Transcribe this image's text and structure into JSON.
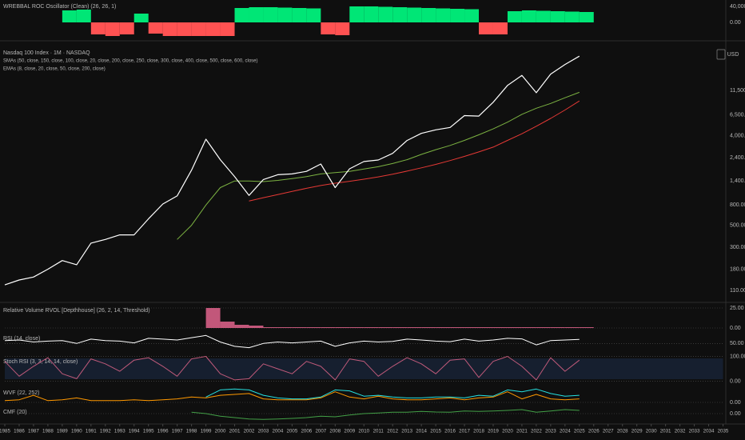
{
  "currency": "USD",
  "chart_data": [
    {
      "type": "bar",
      "title": "WREBBAL ROC Oscillator (Clean) (26, 26, 1)",
      "x": [
        1985,
        1986,
        1987,
        1988,
        1989,
        1990,
        1991,
        1992,
        1993,
        1994,
        1995,
        1996,
        1997,
        1998,
        1999,
        2000,
        2001,
        2002,
        2003,
        2004,
        2005,
        2006,
        2007,
        2008,
        2009,
        2010,
        2011,
        2012,
        2013,
        2014,
        2015,
        2016,
        2017,
        2018,
        2019,
        2020,
        2021,
        2022,
        2023,
        2024,
        2025
      ],
      "series": [
        {
          "color": "#00e676",
          "values": [
            null,
            null,
            null,
            null,
            30000,
            32000,
            -30000,
            -34000,
            -30000,
            22000,
            -28000,
            -34000,
            -34000,
            -34000,
            -34000,
            -34000,
            36000,
            38000,
            38000,
            37000,
            36000,
            35000,
            -30000,
            -32000,
            40000,
            40000,
            39000,
            38000,
            37000,
            36000,
            35000,
            34000,
            33000,
            -30000,
            -30000,
            28000,
            30000,
            29000,
            28000,
            27000,
            26000
          ]
        }
      ],
      "negative_color": "#ff5252",
      "xlim": [
        1985,
        2035
      ],
      "ylim": [
        -40000,
        52000
      ],
      "yticks": [
        {
          "value": 40000,
          "label": "40,000.00"
        },
        {
          "value": 0,
          "label": "0.00"
        }
      ],
      "grid": false
    },
    {
      "type": "line",
      "title": "Nasdaq 100 Index · 1M · NASDAQ",
      "subtitles": [
        "SMAs (50, close, 150, close, 100, close, 20, close, 200, close, 250, close, 300, close, 400, close, 500, close, 600, close)",
        "EMAs (8, close, 20, close, 50, close, 200, close)"
      ],
      "x": [
        1985,
        1986,
        1987,
        1988,
        1989,
        1990,
        1991,
        1992,
        1993,
        1994,
        1995,
        1996,
        1997,
        1998,
        1999,
        2000,
        2001,
        2002,
        2003,
        2004,
        2005,
        2006,
        2007,
        2008,
        2009,
        2010,
        2011,
        2012,
        2013,
        2014,
        2015,
        2016,
        2017,
        2018,
        2019,
        2020,
        2021,
        2022,
        2023,
        2024,
        2025
      ],
      "series": [
        {
          "color": "#7cb342",
          "values": [
            null,
            null,
            null,
            null,
            null,
            null,
            null,
            null,
            null,
            null,
            null,
            null,
            360,
            500,
            800,
            1200,
            1400,
            1400,
            1380,
            1420,
            1480,
            1550,
            1650,
            1700,
            1750,
            1850,
            1950,
            2100,
            2300,
            2600,
            2900,
            3200,
            3600,
            4100,
            4700,
            5500,
            6600,
            7600,
            8500,
            9700,
            11000
          ]
        },
        {
          "color": "#e53935",
          "values": [
            null,
            null,
            null,
            null,
            null,
            null,
            null,
            null,
            null,
            null,
            null,
            null,
            null,
            null,
            null,
            null,
            null,
            880,
            950,
            1020,
            1100,
            1180,
            1260,
            1330,
            1390,
            1460,
            1540,
            1640,
            1760,
            1900,
            2060,
            2250,
            2480,
            2750,
            3080,
            3600,
            4200,
            5000,
            6000,
            7300,
            9000
          ]
        },
        {
          "color": "#ffffff",
          "values": [
            125,
            140,
            150,
            180,
            220,
            200,
            330,
            360,
            400,
            400,
            580,
            820,
            990,
            1800,
            3700,
            2300,
            1550,
            1000,
            1450,
            1620,
            1650,
            1750,
            2080,
            1200,
            1860,
            2200,
            2280,
            2660,
            3590,
            4240,
            4600,
            4860,
            6400,
            6330,
            8730,
            12900,
            16300,
            10900,
            16800,
            21000,
            25500
          ]
        }
      ],
      "log_scale": true,
      "xlim": [
        1985,
        2035
      ],
      "ylim": [
        88,
        32000
      ],
      "yticks": [
        {
          "value": 110,
          "label": "110.00"
        },
        {
          "value": 180,
          "label": "180.00"
        },
        {
          "value": 300,
          "label": "300.00"
        },
        {
          "value": 500,
          "label": "500.00"
        },
        {
          "value": 800,
          "label": "800.00"
        },
        {
          "value": 1400,
          "label": "1,400.00"
        },
        {
          "value": 2400,
          "label": "2,400.00"
        },
        {
          "value": 4000,
          "label": "4,000.00"
        },
        {
          "value": 6500,
          "label": "6,500.00"
        },
        {
          "value": 11500,
          "label": "11,500.00"
        }
      ],
      "grid": false
    },
    {
      "type": "bar",
      "title": "Relative Volume RVOL [Depthhouse] (26, 2, 14, Threshold)",
      "x": [
        1985,
        1986,
        1987,
        1988,
        1989,
        1990,
        1991,
        1992,
        1993,
        1994,
        1995,
        1996,
        1997,
        1998,
        1999,
        2000,
        2001,
        2002,
        2003,
        2004,
        2005,
        2006,
        2007,
        2008,
        2009,
        2010,
        2011,
        2012,
        2013,
        2014,
        2015,
        2016,
        2017,
        2018,
        2019,
        2020,
        2021,
        2022,
        2023,
        2024,
        2025
      ],
      "series": [
        {
          "color": "#c2577a",
          "values": [
            null,
            null,
            null,
            null,
            null,
            null,
            null,
            null,
            null,
            null,
            null,
            null,
            null,
            null,
            25,
            8,
            4,
            3,
            1,
            1,
            1,
            1,
            1,
            1,
            1,
            1,
            1,
            1,
            1,
            1,
            1,
            1,
            1,
            1,
            1,
            1,
            1,
            1,
            1,
            1,
            1
          ]
        }
      ],
      "xlim": [
        1985,
        2035
      ],
      "ylim": [
        0,
        30
      ],
      "yticks": [
        {
          "value": 25,
          "label": "25.00"
        },
        {
          "value": 0,
          "label": "0.00"
        }
      ],
      "grid": true
    },
    {
      "type": "line",
      "title": "RSI (14, close)",
      "x": [
        1985,
        1986,
        1987,
        1988,
        1989,
        1990,
        1991,
        1992,
        1993,
        1994,
        1995,
        1996,
        1997,
        1998,
        1999,
        2000,
        2001,
        2002,
        2003,
        2004,
        2005,
        2006,
        2007,
        2008,
        2009,
        2010,
        2011,
        2012,
        2013,
        2014,
        2015,
        2016,
        2017,
        2018,
        2019,
        2020,
        2021,
        2022,
        2023,
        2024,
        2025
      ],
      "series": [
        {
          "color": "#ffffff",
          "values": [
            60,
            62,
            55,
            58,
            60,
            50,
            65,
            60,
            58,
            52,
            68,
            65,
            62,
            70,
            78,
            55,
            40,
            35,
            50,
            55,
            52,
            55,
            58,
            40,
            52,
            58,
            55,
            57,
            65,
            62,
            58,
            56,
            65,
            58,
            62,
            68,
            66,
            45,
            60,
            62,
            64
          ]
        }
      ],
      "xlim": [
        1985,
        2035
      ],
      "ylim": [
        20,
        90
      ],
      "yticks": [
        {
          "value": 50,
          "label": "50.00"
        }
      ],
      "grid": true
    },
    {
      "type": "line",
      "title": "Stoch RSI (3, 3, 14, 14, close)",
      "x": [
        1985,
        1986,
        1987,
        1988,
        1989,
        1990,
        1991,
        1992,
        1993,
        1994,
        1995,
        1996,
        1997,
        1998,
        1999,
        2000,
        2001,
        2002,
        2003,
        2004,
        2005,
        2006,
        2007,
        2008,
        2009,
        2010,
        2011,
        2012,
        2013,
        2014,
        2015,
        2016,
        2017,
        2018,
        2019,
        2020,
        2021,
        2022,
        2023,
        2024,
        2025
      ],
      "series": [
        {
          "color": "#c05a7a",
          "values": [
            80,
            20,
            60,
            95,
            30,
            10,
            90,
            70,
            40,
            85,
            95,
            60,
            20,
            90,
            100,
            30,
            5,
            10,
            70,
            50,
            30,
            80,
            60,
            5,
            90,
            80,
            20,
            60,
            95,
            70,
            30,
            85,
            90,
            15,
            80,
            100,
            60,
            5,
            95,
            40,
            85
          ]
        }
      ],
      "band_color": "#1a2a44",
      "xlim": [
        1985,
        2035
      ],
      "ylim": [
        -5,
        105
      ],
      "yticks": [
        {
          "value": 100,
          "label": "100.00"
        },
        {
          "value": 0,
          "label": "0.00"
        }
      ],
      "grid": true
    },
    {
      "type": "line",
      "title": "WVF (22, 252)",
      "x": [
        1985,
        1986,
        1987,
        1988,
        1989,
        1990,
        1991,
        1992,
        1993,
        1994,
        1995,
        1996,
        1997,
        1998,
        1999,
        2000,
        2001,
        2002,
        2003,
        2004,
        2005,
        2006,
        2007,
        2008,
        2009,
        2010,
        2011,
        2012,
        2013,
        2014,
        2015,
        2016,
        2017,
        2018,
        2019,
        2020,
        2021,
        2022,
        2023,
        2024,
        2025
      ],
      "series": [
        {
          "color": "#ff9800",
          "values": [
            2,
            3,
            8,
            2,
            3,
            5,
            2,
            2,
            2,
            3,
            2,
            3,
            4,
            6,
            5,
            8,
            9,
            10,
            4,
            3,
            3,
            3,
            5,
            12,
            6,
            4,
            7,
            4,
            3,
            3,
            4,
            5,
            3,
            5,
            6,
            12,
            4,
            9,
            4,
            3,
            4
          ]
        },
        {
          "color": "#26e0e0",
          "values": [
            null,
            null,
            null,
            null,
            null,
            null,
            null,
            null,
            null,
            null,
            null,
            null,
            null,
            null,
            6,
            14,
            15,
            14,
            8,
            5,
            4,
            4,
            6,
            14,
            13,
            7,
            8,
            6,
            5,
            5,
            6,
            6,
            5,
            8,
            7,
            14,
            12,
            15,
            10,
            7,
            8
          ]
        }
      ],
      "xlim": [
        1985,
        2035
      ],
      "ylim": [
        0,
        18
      ],
      "yticks": [
        {
          "value": 0,
          "label": "0.00"
        }
      ],
      "grid": true
    },
    {
      "type": "line",
      "title": "CMF (20)",
      "x": [
        1985,
        1986,
        1987,
        1988,
        1989,
        1990,
        1991,
        1992,
        1993,
        1994,
        1995,
        1996,
        1997,
        1998,
        1999,
        2000,
        2001,
        2002,
        2003,
        2004,
        2005,
        2006,
        2007,
        2008,
        2009,
        2010,
        2011,
        2012,
        2013,
        2014,
        2015,
        2016,
        2017,
        2018,
        2019,
        2020,
        2021,
        2022,
        2023,
        2024,
        2025
      ],
      "series": [
        {
          "color": "#43a047",
          "values": [
            null,
            null,
            null,
            null,
            null,
            null,
            null,
            null,
            null,
            null,
            null,
            null,
            null,
            0.05,
            0,
            -0.1,
            -0.15,
            -0.2,
            -0.22,
            -0.2,
            -0.18,
            -0.15,
            -0.1,
            -0.12,
            -0.05,
            0,
            0.02,
            0.05,
            0.05,
            0.08,
            0.06,
            0.05,
            0.1,
            0.08,
            0.1,
            0.12,
            0.15,
            0.05,
            0.1,
            0.15,
            0.12
          ]
        }
      ],
      "xlim": [
        1985,
        2035
      ],
      "ylim": [
        -0.3,
        0.3
      ],
      "yticks": [
        {
          "value": 0,
          "label": "0.00"
        }
      ],
      "grid": true,
      "xticks": [
        1985,
        1986,
        1987,
        1988,
        1989,
        1990,
        1991,
        1992,
        1993,
        1994,
        1995,
        1996,
        1997,
        1998,
        1999,
        2000,
        2001,
        2002,
        2003,
        2004,
        2005,
        2006,
        2007,
        2008,
        2009,
        2010,
        2011,
        2012,
        2013,
        2014,
        2015,
        2016,
        2017,
        2018,
        2019,
        2020,
        2021,
        2022,
        2023,
        2024,
        2025,
        2026,
        2027,
        2028,
        2029,
        2030,
        2031,
        2032,
        2033,
        2034,
        2035
      ]
    }
  ]
}
